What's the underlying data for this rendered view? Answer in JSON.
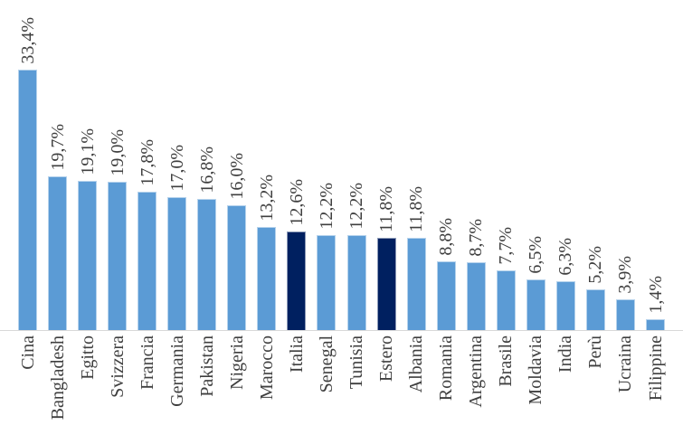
{
  "chart_data": {
    "type": "bar",
    "title": "",
    "xlabel": "",
    "ylabel": "",
    "categories": [
      "Cina",
      "Bangladesh",
      "Egitto",
      "Svizzera",
      "Francia",
      "Germania",
      "Pakistan",
      "Nigeria",
      "Marocco",
      "Italia",
      "Senegal",
      "Tunisia",
      "Estero",
      "Albania",
      "Romania",
      "Argentina",
      "Brasile",
      "Moldavia",
      "India",
      "Perù",
      "Ucraina",
      "Filippine"
    ],
    "values": [
      33.4,
      19.7,
      19.1,
      19.0,
      17.8,
      17.0,
      16.8,
      16.0,
      13.2,
      12.6,
      12.2,
      12.2,
      11.8,
      11.8,
      8.8,
      8.7,
      7.7,
      6.5,
      6.3,
      5.2,
      3.9,
      1.4
    ],
    "value_labels": [
      "33,4%",
      "19,7%",
      "19,1%",
      "19,0%",
      "17,8%",
      "17,0%",
      "16,8%",
      "16,0%",
      "13,2%",
      "12,6%",
      "12,2%",
      "12,2%",
      "11,8%",
      "11,8%",
      "8,8%",
      "8,7%",
      "7,7%",
      "6,5%",
      "6,3%",
      "5,2%",
      "3,9%",
      "1,4%"
    ],
    "highlighted_indices": [
      9,
      12
    ],
    "highlighted_categories": [
      "Italia",
      "Estero"
    ],
    "ylim": [
      0,
      33.4
    ],
    "grid": false,
    "legend": false,
    "value_label_rotation_deg": 90,
    "category_label_rotation_deg": 90,
    "colors": {
      "bar_default": "#5B9BD5",
      "bar_highlight": "#002060",
      "axis_line": "#D9D9D9",
      "label_text": "#3F3F3F",
      "background": "#FFFFFF"
    }
  }
}
